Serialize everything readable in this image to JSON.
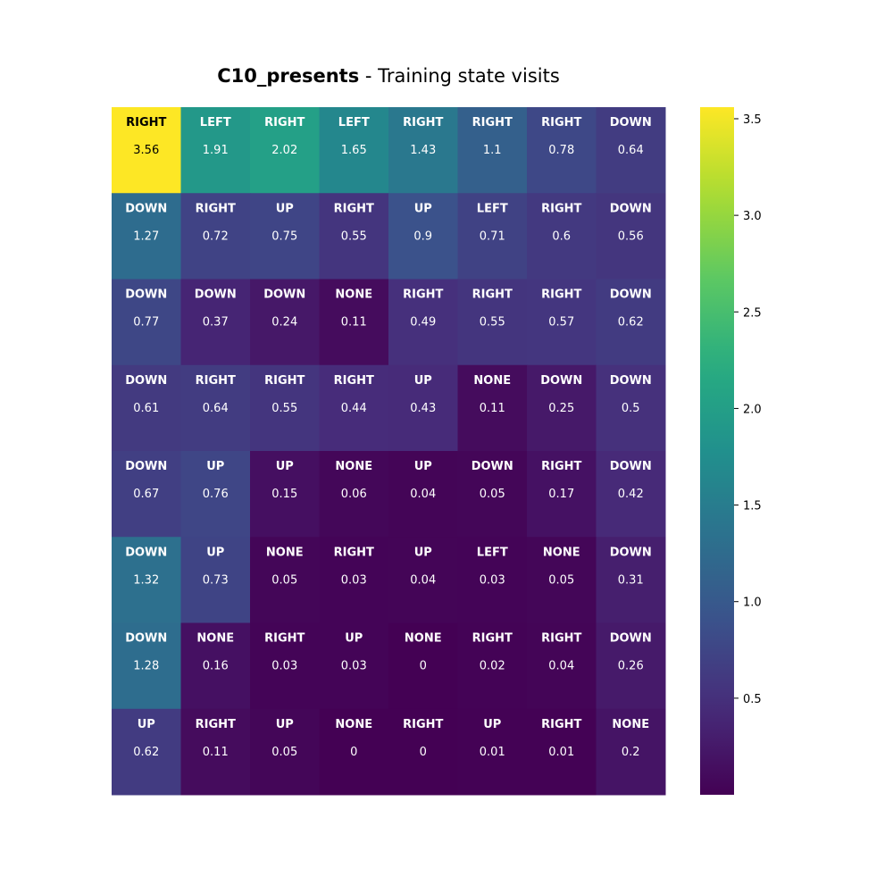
{
  "chart_data": {
    "type": "heatmap",
    "title": {
      "bold": "C10_presents",
      "rest": " - Training state visits"
    },
    "rows": 8,
    "cols": 8,
    "actions": [
      [
        "RIGHT",
        "LEFT",
        "RIGHT",
        "LEFT",
        "RIGHT",
        "RIGHT",
        "RIGHT",
        "DOWN"
      ],
      [
        "DOWN",
        "RIGHT",
        "UP",
        "RIGHT",
        "UP",
        "LEFT",
        "RIGHT",
        "DOWN"
      ],
      [
        "DOWN",
        "DOWN",
        "DOWN",
        "NONE",
        "RIGHT",
        "RIGHT",
        "RIGHT",
        "DOWN"
      ],
      [
        "DOWN",
        "RIGHT",
        "RIGHT",
        "RIGHT",
        "UP",
        "NONE",
        "DOWN",
        "DOWN"
      ],
      [
        "DOWN",
        "UP",
        "UP",
        "NONE",
        "UP",
        "DOWN",
        "RIGHT",
        "DOWN"
      ],
      [
        "DOWN",
        "UP",
        "NONE",
        "RIGHT",
        "UP",
        "LEFT",
        "NONE",
        "DOWN"
      ],
      [
        "DOWN",
        "NONE",
        "RIGHT",
        "UP",
        "NONE",
        "RIGHT",
        "RIGHT",
        "DOWN"
      ],
      [
        "UP",
        "RIGHT",
        "UP",
        "NONE",
        "RIGHT",
        "UP",
        "RIGHT",
        "NONE"
      ]
    ],
    "values": [
      [
        3.56,
        1.91,
        2.02,
        1.65,
        1.43,
        1.1,
        0.78,
        0.64
      ],
      [
        1.27,
        0.72,
        0.75,
        0.55,
        0.9,
        0.71,
        0.6,
        0.56
      ],
      [
        0.77,
        0.37,
        0.24,
        0.11,
        0.49,
        0.55,
        0.57,
        0.62
      ],
      [
        0.61,
        0.64,
        0.55,
        0.44,
        0.43,
        0.11,
        0.25,
        0.5
      ],
      [
        0.67,
        0.76,
        0.15,
        0.06,
        0.04,
        0.05,
        0.17,
        0.42
      ],
      [
        1.32,
        0.73,
        0.05,
        0.03,
        0.04,
        0.03,
        0.05,
        0.31
      ],
      [
        1.28,
        0.16,
        0.03,
        0.03,
        0,
        0.02,
        0.04,
        0.26
      ],
      [
        0.62,
        0.11,
        0.05,
        0,
        0,
        0.01,
        0.01,
        0.2
      ]
    ],
    "value_labels": [
      [
        "3.56",
        "1.91",
        "2.02",
        "1.65",
        "1.43",
        "1.1",
        "0.78",
        "0.64"
      ],
      [
        "1.27",
        "0.72",
        "0.75",
        "0.55",
        "0.9",
        "0.71",
        "0.6",
        "0.56"
      ],
      [
        "0.77",
        "0.37",
        "0.24",
        "0.11",
        "0.49",
        "0.55",
        "0.57",
        "0.62"
      ],
      [
        "0.61",
        "0.64",
        "0.55",
        "0.44",
        "0.43",
        "0.11",
        "0.25",
        "0.5"
      ],
      [
        "0.67",
        "0.76",
        "0.15",
        "0.06",
        "0.04",
        "0.05",
        "0.17",
        "0.42"
      ],
      [
        "1.32",
        "0.73",
        "0.05",
        "0.03",
        "0.04",
        "0.03",
        "0.05",
        "0.31"
      ],
      [
        "1.28",
        "0.16",
        "0.03",
        "0.03",
        "0",
        "0.02",
        "0.04",
        "0.26"
      ],
      [
        "0.62",
        "0.11",
        "0.05",
        "0",
        "0",
        "0.01",
        "0.01",
        "0.2"
      ]
    ],
    "colormap": "viridis",
    "vmin": 0,
    "vmax": 3.56,
    "colorbar": {
      "ticks": [
        0.5,
        1.0,
        1.5,
        2.0,
        2.5,
        3.0,
        3.5
      ],
      "tick_labels": [
        "0.5",
        "1.0",
        "1.5",
        "2.0",
        "2.5",
        "3.0",
        "3.5"
      ]
    },
    "grid": false,
    "xlabel": "",
    "ylabel": ""
  }
}
